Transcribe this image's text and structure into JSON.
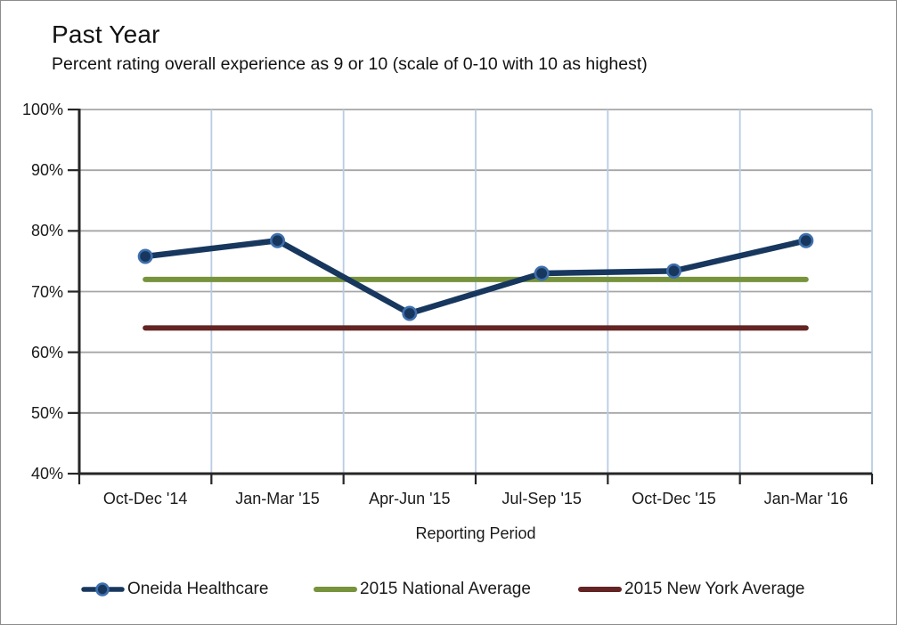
{
  "chart_data": {
    "type": "line",
    "title": "Past Year",
    "subtitle": "Percent rating overall experience as 9 or 10 (scale of 0-10 with 10 as highest)",
    "categories": [
      "Oct-Dec '14",
      "Jan-Mar '15",
      "Apr-Jun '15",
      "Jul-Sep '15",
      "Oct-Dec '15",
      "Jan-Mar '16"
    ],
    "series": [
      {
        "name": "Oneida Healthcare",
        "values": [
          75.8,
          78.4,
          66.4,
          73.0,
          73.4,
          78.4
        ],
        "color": "#17375e",
        "marker": "circle",
        "marker_ring_color": "#3e6fad",
        "style": "line-with-markers"
      },
      {
        "name": "2015 National Average",
        "values": [
          72,
          72,
          72,
          72,
          72,
          72
        ],
        "color": "#77933c",
        "marker": "none",
        "style": "reference-line"
      },
      {
        "name": "2015 New York Average",
        "values": [
          64,
          64,
          64,
          64,
          64,
          64
        ],
        "color": "#632423",
        "marker": "none",
        "style": "reference-line"
      }
    ],
    "xlabel": "Reporting Period",
    "ylabel": "",
    "ylim": [
      40,
      100
    ],
    "yticks": [
      40,
      50,
      60,
      70,
      80,
      90,
      100
    ],
    "ytick_format": "percent",
    "grid": {
      "horizontal": true,
      "vertical": true
    },
    "legend_position": "bottom"
  },
  "colors": {
    "horizontal_gridline": "#a6a6a6",
    "vertical_gridline": "#b8cce4",
    "axis": "#262626",
    "text": "#1a1a1a",
    "background": "#ffffff",
    "panel_border": "#8c8c8c"
  }
}
